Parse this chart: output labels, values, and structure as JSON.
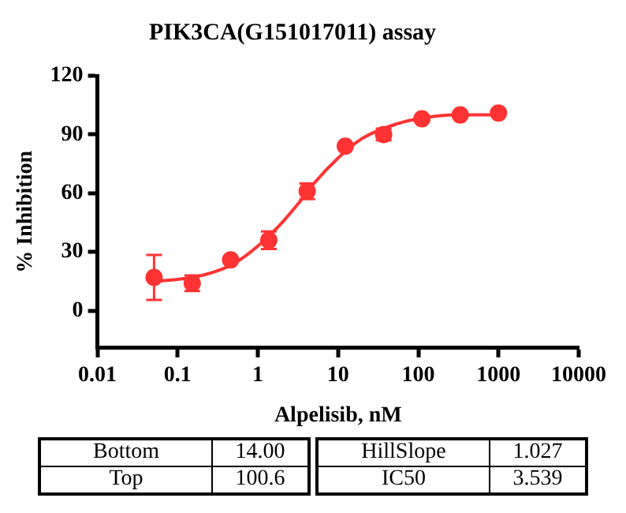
{
  "chart_data": {
    "type": "scatter",
    "title": "PIK3CA(G151017011) assay",
    "xlabel": "Alpelisib, nM",
    "ylabel": "% Inhibition",
    "log": "x",
    "xlim": [
      0.01,
      10000
    ],
    "xticks": [
      0.01,
      0.1,
      1,
      10,
      100,
      1000,
      10000
    ],
    "ylim": [
      -19,
      120
    ],
    "yticks": [
      0,
      30,
      60,
      90,
      120
    ],
    "grid": false,
    "legend": false,
    "marker": "circle",
    "series": [
      {
        "type": "scatter",
        "color": "#ff3333",
        "x": [
          0.0508,
          0.152,
          0.457,
          1.37,
          4.12,
          12.3,
          37,
          111,
          333,
          1000
        ],
        "values": [
          17,
          14,
          26,
          36,
          61,
          84,
          90,
          98,
          100,
          101
        ],
        "errors": [
          11.5,
          4,
          null,
          4.5,
          4,
          null,
          3,
          null,
          null,
          null
        ]
      },
      {
        "type": "line",
        "color": "#ff3333",
        "marker": "none",
        "line_style": "solid",
        "x": [
          0.05,
          0.1,
          0.2,
          0.5,
          1,
          2,
          3.539,
          5,
          10,
          20,
          50,
          100,
          300,
          1000
        ],
        "values": [
          15,
          16,
          18,
          24,
          33,
          45,
          57,
          65,
          78,
          88,
          95,
          98,
          100,
          100
        ]
      }
    ],
    "annotations": [
      "Bottom",
      "14.00",
      "Top",
      "100.6",
      "HillSlope",
      "1.027",
      "IC50",
      "3.539"
    ]
  }
}
